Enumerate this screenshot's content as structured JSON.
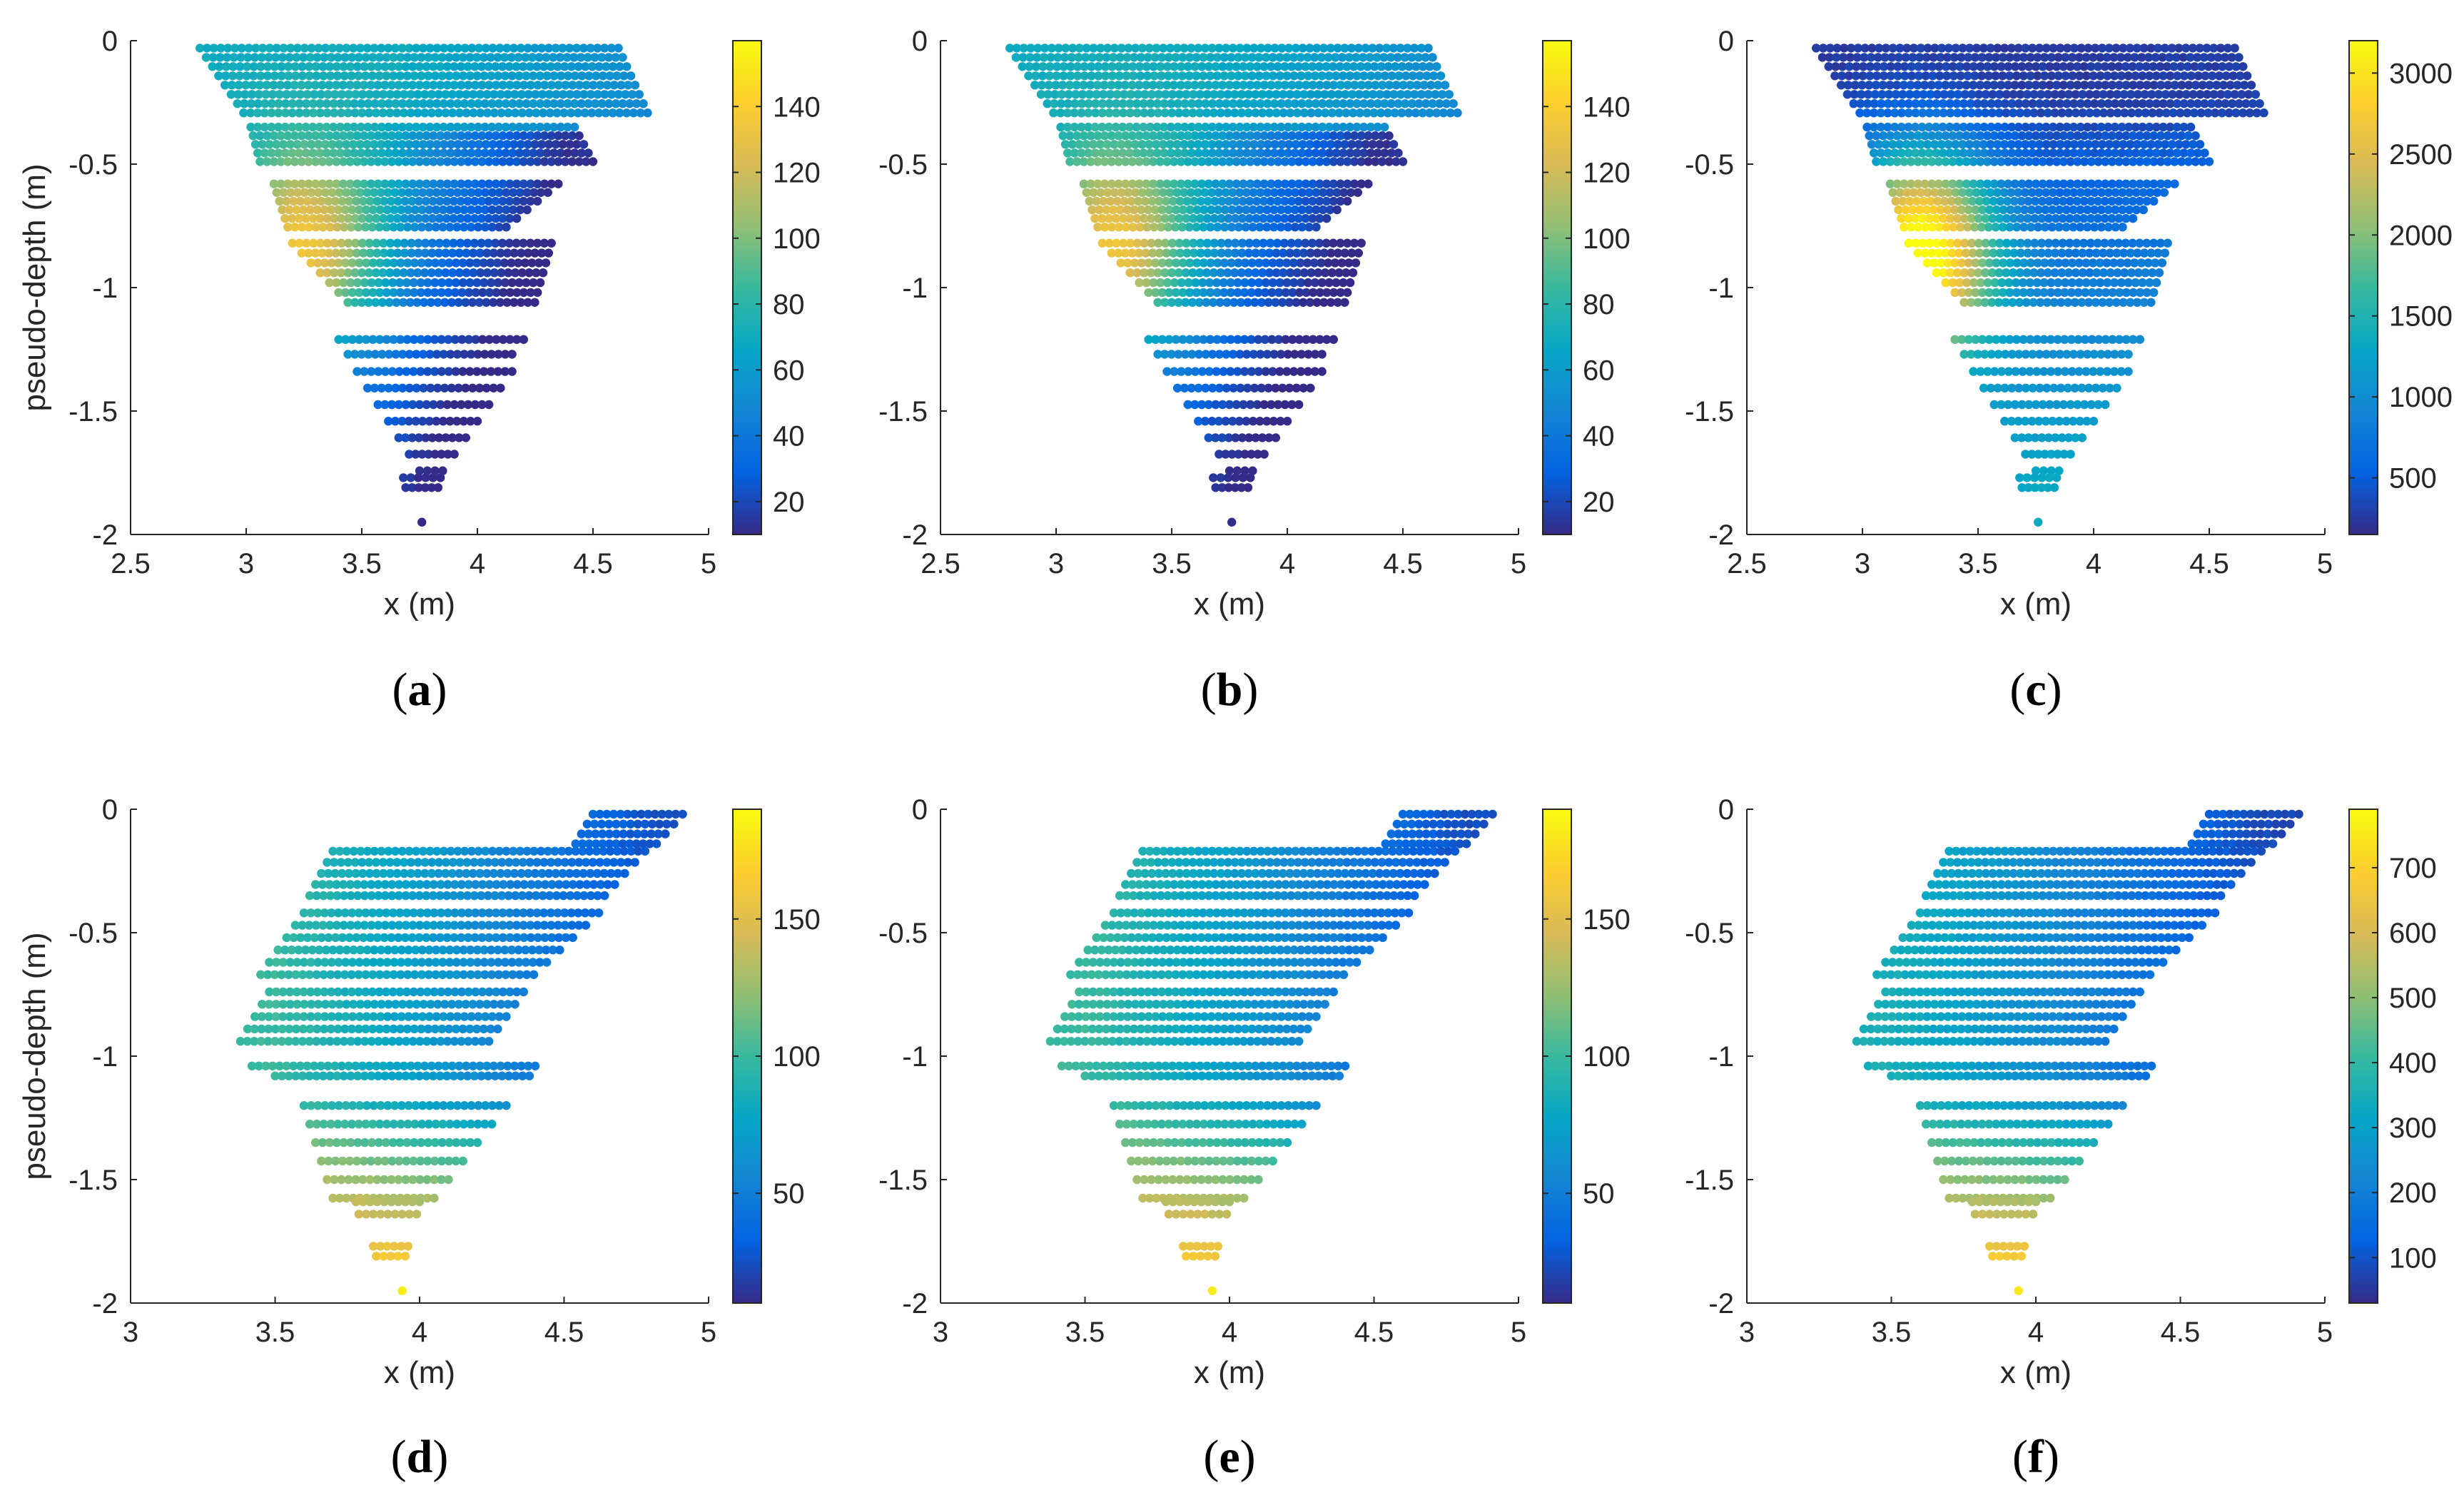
{
  "figure": {
    "background": "#ffffff"
  },
  "colormap": {
    "name": "parula",
    "stops": [
      "#352a87",
      "#0363e1",
      "#1485d4",
      "#06a7c6",
      "#38b99e",
      "#92bf73",
      "#d9ba56",
      "#fcce2e",
      "#f9fb0e"
    ]
  },
  "chart_data": [
    {
      "type": "scatter",
      "panel_label": "a",
      "caption": {
        "open": "(",
        "letter": "a",
        "close": ")"
      },
      "xlabel": "x (m)",
      "ylabel": "pseudo-depth (m)",
      "xlim": [
        2.5,
        5
      ],
      "ylim": [
        -2,
        0
      ],
      "xticks": [
        "2.5",
        "3",
        "3.5",
        "4",
        "4.5",
        "5"
      ],
      "yticks": [
        "0",
        "-0.5",
        "-1",
        "-1.5",
        "-2"
      ],
      "show_ylabel": true,
      "colorbar": {
        "min": 10,
        "max": 160,
        "ticks": [
          "20",
          "40",
          "60",
          "80",
          "100",
          "120",
          "140"
        ]
      },
      "pattern": "inverted-triangle",
      "value_model": {
        "top": 70,
        "high_zone": 155,
        "low": 20,
        "bottom": 20
      }
    },
    {
      "type": "scatter",
      "panel_label": "b",
      "caption": {
        "open": "(",
        "letter": "b",
        "close": ")"
      },
      "xlabel": "x (m)",
      "ylabel": "",
      "xlim": [
        2.5,
        5
      ],
      "ylim": [
        -2,
        0
      ],
      "xticks": [
        "2.5",
        "3",
        "3.5",
        "4",
        "4.5",
        "5"
      ],
      "yticks": [
        "0",
        "-0.5",
        "-1",
        "-1.5",
        "-2"
      ],
      "show_ylabel": false,
      "colorbar": {
        "min": 10,
        "max": 160,
        "ticks": [
          "20",
          "40",
          "60",
          "80",
          "100",
          "120",
          "140"
        ]
      },
      "pattern": "inverted-triangle",
      "value_model": {
        "top": 70,
        "high_zone": 155,
        "low": 20,
        "bottom": 20
      }
    },
    {
      "type": "scatter",
      "panel_label": "c",
      "caption": {
        "open": "(",
        "letter": "c",
        "close": ")"
      },
      "xlabel": "x (m)",
      "ylabel": "",
      "xlim": [
        2.5,
        5
      ],
      "ylim": [
        -2,
        0
      ],
      "xticks": [
        "2.5",
        "3",
        "3.5",
        "4",
        "4.5",
        "5"
      ],
      "yticks": [
        "0",
        "-0.5",
        "-1",
        "-1.5",
        "-2"
      ],
      "show_ylabel": false,
      "colorbar": {
        "min": 150,
        "max": 3200,
        "ticks": [
          "500",
          "1000",
          "1500",
          "2000",
          "2500",
          "3000"
        ]
      },
      "pattern": "inverted-triangle",
      "value_model": {
        "top": 250,
        "high_zone": 3000,
        "low": 350,
        "bottom": 1300
      }
    },
    {
      "type": "scatter",
      "panel_label": "d",
      "caption": {
        "open": "(",
        "letter": "d",
        "close": ")"
      },
      "xlabel": "x (m)",
      "ylabel": "pseudo-depth (m)",
      "xlim": [
        3,
        5
      ],
      "ylim": [
        -2,
        0
      ],
      "xticks": [
        "3",
        "3.5",
        "4",
        "4.5",
        "5"
      ],
      "yticks": [
        "0",
        "-0.5",
        "-1",
        "-1.5",
        "-2"
      ],
      "show_ylabel": true,
      "colorbar": {
        "min": 10,
        "max": 190,
        "ticks": [
          "50",
          "100",
          "150"
        ]
      },
      "pattern": "parallelogram",
      "value_model": {
        "left": 100,
        "right": 25,
        "bottom": 180
      }
    },
    {
      "type": "scatter",
      "panel_label": "e",
      "caption": {
        "open": "(",
        "letter": "e",
        "close": ")"
      },
      "xlabel": "x (m)",
      "ylabel": "",
      "xlim": [
        3,
        5
      ],
      "ylim": [
        -2,
        0
      ],
      "xticks": [
        "3",
        "3.5",
        "4",
        "4.5",
        "5"
      ],
      "yticks": [
        "0",
        "-0.5",
        "-1",
        "-1.5",
        "-2"
      ],
      "show_ylabel": false,
      "colorbar": {
        "min": 10,
        "max": 190,
        "ticks": [
          "50",
          "100",
          "150"
        ]
      },
      "pattern": "parallelogram",
      "value_model": {
        "left": 100,
        "right": 25,
        "bottom": 180
      }
    },
    {
      "type": "scatter",
      "panel_label": "f",
      "caption": {
        "open": "(",
        "letter": "f",
        "close": ")"
      },
      "xlabel": "x (m)",
      "ylabel": "",
      "xlim": [
        3,
        5
      ],
      "ylim": [
        -2,
        0
      ],
      "xticks": [
        "3",
        "3.5",
        "4",
        "4.5",
        "5"
      ],
      "yticks": [
        "0",
        "-0.5",
        "-1",
        "-1.5",
        "-2"
      ],
      "show_ylabel": false,
      "colorbar": {
        "min": 30,
        "max": 790,
        "ticks": [
          "100",
          "200",
          "300",
          "400",
          "500",
          "600",
          "700"
        ]
      },
      "pattern": "parallelogram",
      "value_model": {
        "left": 350,
        "right": 80,
        "bottom": 760
      }
    }
  ]
}
